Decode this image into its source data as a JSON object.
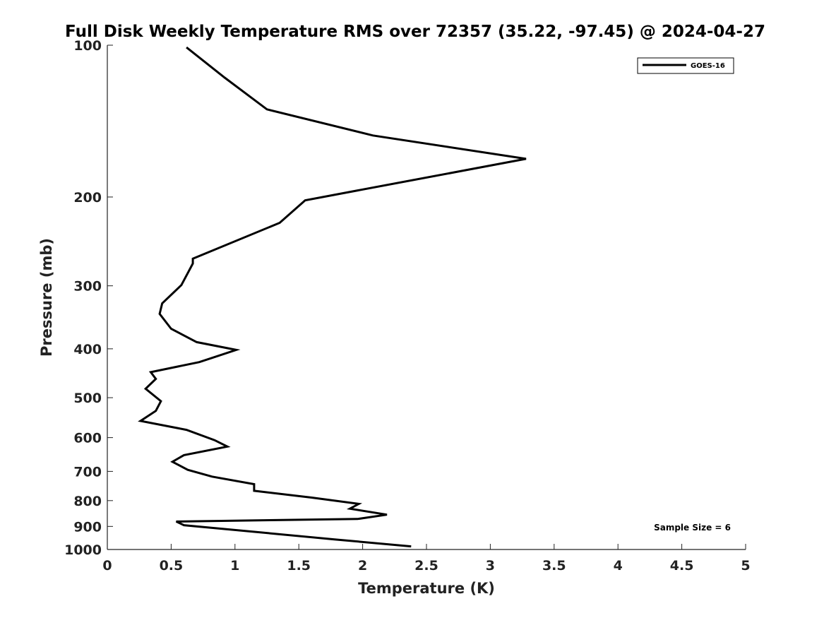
{
  "chart_data": {
    "type": "line",
    "title": "Full Disk Weekly Temperature RMS over 72357 (35.22, -97.45) @ 2024-04-27",
    "xlabel": "Temperature (K)",
    "ylabel": "Pressure (mb)",
    "xlim": [
      0,
      5
    ],
    "ylim": [
      1000,
      100
    ],
    "y_scale": "log",
    "y_reversed": true,
    "grid": false,
    "legend_position": "top-right",
    "x_ticks": [
      0,
      0.5,
      1,
      1.5,
      2,
      2.5,
      3,
      3.5,
      4,
      4.5,
      5
    ],
    "x_tick_labels": [
      "0",
      "0.5",
      "1",
      "1.5",
      "2",
      "2.5",
      "3",
      "3.5",
      "4",
      "4.5",
      "5"
    ],
    "y_ticks": [
      100,
      200,
      300,
      400,
      500,
      600,
      700,
      800,
      900,
      1000
    ],
    "y_tick_labels": [
      "100",
      "200",
      "300",
      "400",
      "500",
      "600",
      "700",
      "800",
      "900",
      "1000"
    ],
    "series": [
      {
        "name": "GOES-16",
        "color": "#000000",
        "x": [
          0.62,
          0.92,
          1.25,
          2.08,
          3.28,
          1.55,
          1.35,
          0.67,
          0.67,
          0.64,
          0.58,
          0.43,
          0.41,
          0.5,
          0.7,
          1.01,
          0.72,
          0.34,
          0.38,
          0.3,
          0.42,
          0.38,
          0.26,
          0.62,
          0.84,
          0.94,
          0.6,
          0.51,
          0.63,
          0.82,
          1.15,
          1.15,
          1.6,
          1.97,
          1.9,
          2.19,
          1.96,
          0.54,
          0.6,
          1.78,
          2.38
        ],
        "y": [
          101,
          116,
          134,
          151,
          168,
          203,
          225,
          265,
          271,
          280,
          299,
          325,
          341,
          365,
          388,
          402,
          425,
          445,
          459,
          480,
          508,
          531,
          556,
          579,
          607,
          625,
          650,
          670,
          695,
          717,
          742,
          765,
          789,
          812,
          830,
          853,
          870,
          880,
          895,
          955,
          986
        ]
      }
    ],
    "annotations": [
      "Sample Size = 6"
    ]
  }
}
